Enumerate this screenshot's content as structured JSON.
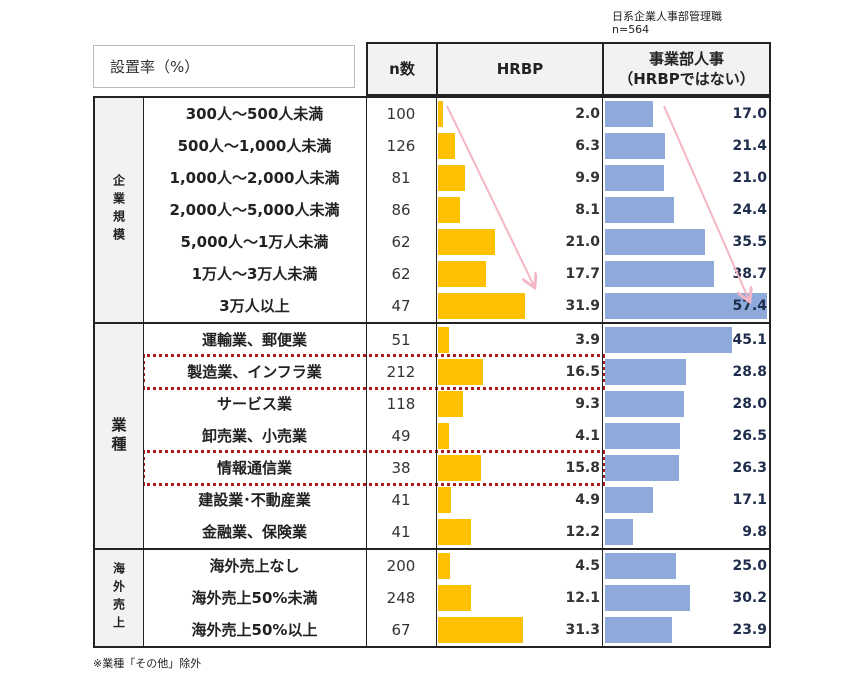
{
  "header": {
    "note_line1": "日系企業人事部管理職",
    "note_line2": "n=564",
    "title": "設置率（%）",
    "col_n": "n数",
    "col_hrbp": "HRBP",
    "col_bu_line1": "事業部人事",
    "col_bu_line2": "（HRBPではない）"
  },
  "footnote": "※業種「その他」除外",
  "colors": {
    "hrbp": "#ffc000",
    "bu": "#8eaadb",
    "highlight": "#b01c1c",
    "arrow": "#f4b6c2"
  },
  "chart_data": {
    "type": "table",
    "title": "設置率（%）",
    "columns": [
      "n数",
      "HRBP",
      "事業部人事（HRBPではない）"
    ],
    "groups": [
      {
        "name": "企業規模",
        "rows": [
          {
            "label": "300人～500人未満",
            "n": "100",
            "hrbp": "2.0",
            "bu": "17.0"
          },
          {
            "label": "500人～1,000人未満",
            "n": "126",
            "hrbp": "6.3",
            "bu": "21.4"
          },
          {
            "label": "1,000人～2,000人未満",
            "n": "81",
            "hrbp": "9.9",
            "bu": "21.0"
          },
          {
            "label": "2,000人～5,000人未満",
            "n": "86",
            "hrbp": "8.1",
            "bu": "24.4"
          },
          {
            "label": "5,000人～1万人未満",
            "n": "62",
            "hrbp": "21.0",
            "bu": "35.5"
          },
          {
            "label": "1万人～3万人未満",
            "n": "62",
            "hrbp": "17.7",
            "bu": "38.7"
          },
          {
            "label": "3万人以上",
            "n": "47",
            "hrbp": "31.9",
            "bu": "57.4"
          }
        ]
      },
      {
        "name": "業種",
        "rows": [
          {
            "label": "運輸業、郵便業",
            "n": "51",
            "hrbp": "3.9",
            "bu": "45.1"
          },
          {
            "label": "製造業、インフラ業",
            "n": "212",
            "hrbp": "16.5",
            "bu": "28.8",
            "highlight": true
          },
          {
            "label": "サービス業",
            "n": "118",
            "hrbp": "9.3",
            "bu": "28.0"
          },
          {
            "label": "卸売業、小売業",
            "n": "49",
            "hrbp": "4.1",
            "bu": "26.5"
          },
          {
            "label": "情報通信業",
            "n": "38",
            "hrbp": "15.8",
            "bu": "26.3",
            "highlight": true
          },
          {
            "label": "建設業･不動産業",
            "n": "41",
            "hrbp": "4.9",
            "bu": "17.1"
          },
          {
            "label": "金融業、保険業",
            "n": "41",
            "hrbp": "12.2",
            "bu": "9.8"
          }
        ]
      },
      {
        "name": "海外売上",
        "rows": [
          {
            "label": "海外売上なし",
            "n": "200",
            "hrbp": "4.5",
            "bu": "25.0"
          },
          {
            "label": "海外売上50%未満",
            "n": "248",
            "hrbp": "12.1",
            "bu": "30.2"
          },
          {
            "label": "海外売上50%以上",
            "n": "67",
            "hrbp": "31.3",
            "bu": "23.9"
          }
        ]
      }
    ]
  }
}
